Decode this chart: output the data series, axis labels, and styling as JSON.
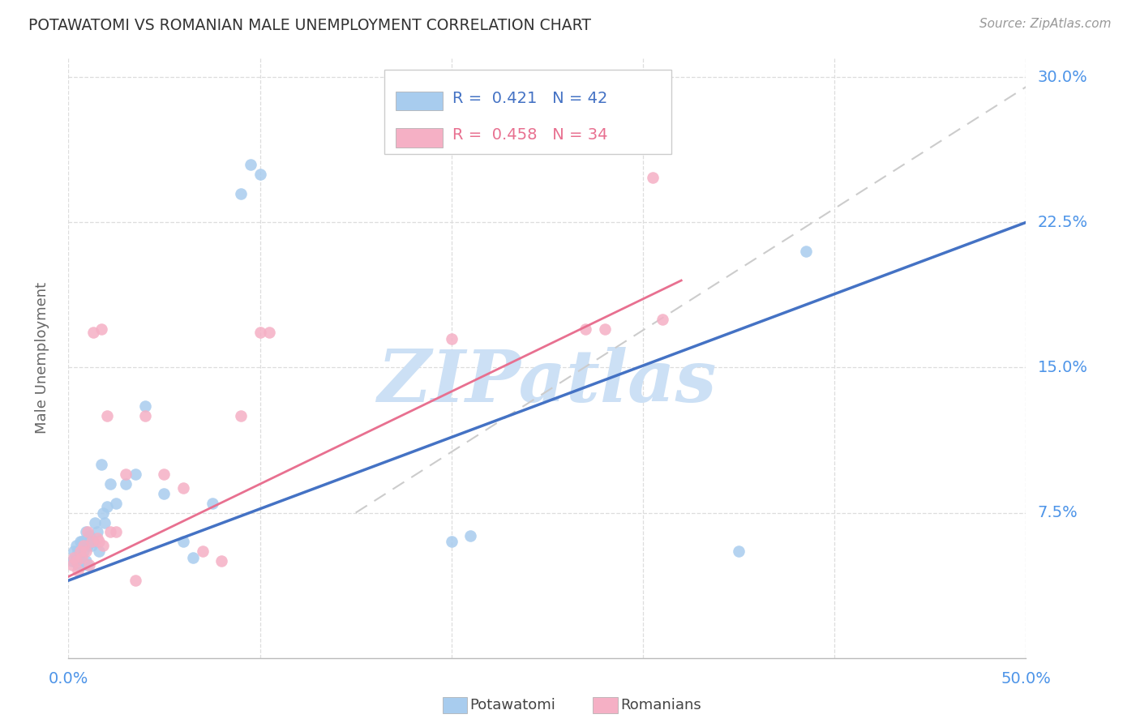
{
  "title": "POTAWATOMI VS ROMANIAN MALE UNEMPLOYMENT CORRELATION CHART",
  "source": "Source: ZipAtlas.com",
  "ylabel": "Male Unemployment",
  "background_color": "#ffffff",
  "title_color": "#333333",
  "source_color": "#999999",
  "axis_tick_color": "#4d94e8",
  "grid_color": "#dddddd",
  "watermark_text": "ZIPatlas",
  "watermark_color": "#cce0f5",
  "potawatomi_marker_color": "#a8ccee",
  "romanian_marker_color": "#f5b0c5",
  "potawatomi_line_color": "#4472c4",
  "romanian_line_color": "#e87090",
  "ref_line_color": "#cccccc",
  "legend_r1": "0.421",
  "legend_n1": "42",
  "legend_r2": "0.458",
  "legend_n2": "34",
  "legend_label1": "Potawatomi",
  "legend_label2": "Romanians",
  "legend_color1": "#4472c4",
  "legend_color2": "#e87090",
  "ytick_values": [
    0.075,
    0.15,
    0.225,
    0.3
  ],
  "ytick_labels": [
    "7.5%",
    "15.0%",
    "22.5%",
    "30.0%"
  ],
  "xtick_show": [
    0.0,
    0.5
  ],
  "xtick_show_labels": [
    "0.0%",
    "50.0%"
  ],
  "xtick_minor": [
    0.1,
    0.2,
    0.3,
    0.4
  ],
  "xlim": [
    0.0,
    0.5
  ],
  "ylim": [
    0.0,
    0.31
  ],
  "pot_x": [
    0.002,
    0.003,
    0.004,
    0.004,
    0.005,
    0.005,
    0.006,
    0.006,
    0.007,
    0.007,
    0.008,
    0.008,
    0.009,
    0.009,
    0.01,
    0.01,
    0.011,
    0.012,
    0.013,
    0.014,
    0.015,
    0.016,
    0.017,
    0.018,
    0.019,
    0.02,
    0.022,
    0.025,
    0.03,
    0.035,
    0.04,
    0.05,
    0.06,
    0.065,
    0.075,
    0.09,
    0.095,
    0.1,
    0.2,
    0.21,
    0.35,
    0.385
  ],
  "pot_y": [
    0.05,
    0.055,
    0.052,
    0.058,
    0.048,
    0.055,
    0.052,
    0.06,
    0.048,
    0.06,
    0.055,
    0.06,
    0.05,
    0.065,
    0.048,
    0.058,
    0.063,
    0.058,
    0.06,
    0.07,
    0.065,
    0.055,
    0.1,
    0.075,
    0.07,
    0.078,
    0.09,
    0.08,
    0.09,
    0.095,
    0.13,
    0.085,
    0.06,
    0.052,
    0.08,
    0.24,
    0.255,
    0.25,
    0.06,
    0.063,
    0.055,
    0.21
  ],
  "rom_x": [
    0.002,
    0.003,
    0.004,
    0.005,
    0.006,
    0.007,
    0.008,
    0.009,
    0.01,
    0.011,
    0.012,
    0.013,
    0.015,
    0.016,
    0.017,
    0.018,
    0.02,
    0.022,
    0.025,
    0.03,
    0.035,
    0.04,
    0.05,
    0.06,
    0.07,
    0.08,
    0.09,
    0.1,
    0.105,
    0.2,
    0.27,
    0.28,
    0.305,
    0.31
  ],
  "rom_y": [
    0.048,
    0.052,
    0.05,
    0.045,
    0.055,
    0.052,
    0.058,
    0.055,
    0.065,
    0.048,
    0.06,
    0.168,
    0.062,
    0.06,
    0.17,
    0.058,
    0.125,
    0.065,
    0.065,
    0.095,
    0.04,
    0.125,
    0.095,
    0.088,
    0.055,
    0.05,
    0.125,
    0.168,
    0.168,
    0.165,
    0.17,
    0.17,
    0.248,
    0.175
  ],
  "blue_line_x0": 0.0,
  "blue_line_y0": 0.04,
  "blue_line_x1": 0.5,
  "blue_line_y1": 0.225,
  "pink_line_x0": 0.0,
  "pink_line_y0": 0.042,
  "pink_line_x1": 0.32,
  "pink_line_y1": 0.195,
  "ref_line_x0": 0.15,
  "ref_line_y0": 0.075,
  "ref_line_x1": 0.5,
  "ref_line_y1": 0.295
}
